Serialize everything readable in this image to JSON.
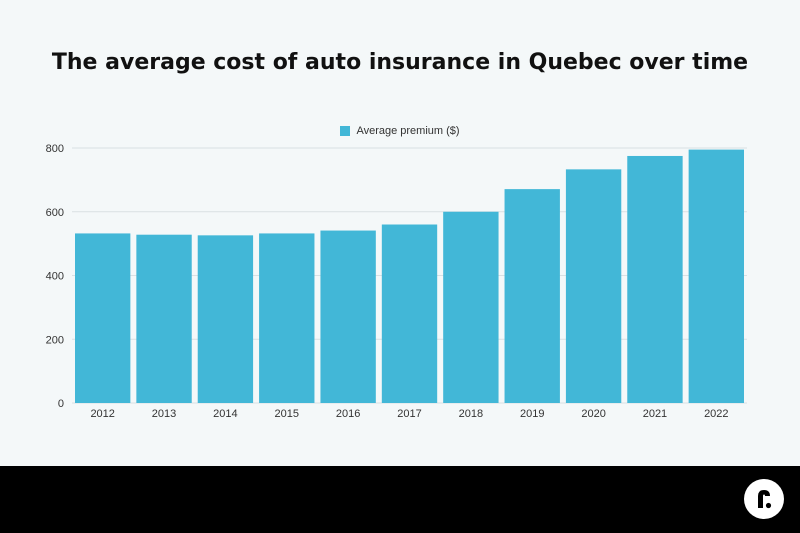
{
  "chart_data": {
    "type": "bar",
    "title": "The average cost of auto insurance in Quebec over time",
    "categories": [
      "2012",
      "2013",
      "2014",
      "2015",
      "2016",
      "2017",
      "2018",
      "2019",
      "2020",
      "2021",
      "2022"
    ],
    "series": [
      {
        "name": "Average premium ($)",
        "values": [
          532,
          528,
          526,
          532,
          541,
          560,
          600,
          671,
          733,
          775,
          795
        ]
      }
    ],
    "yticks": [
      "0",
      "200",
      "400",
      "600",
      "800"
    ],
    "ylim": [
      0,
      800
    ],
    "grid": true,
    "legend_position": "top-center",
    "bar_color": "#42b7d7",
    "gridline_color": "#d9e0e3"
  },
  "logo": {
    "icon": "brand-logo-icon"
  },
  "colors": {
    "background": "#f4f8f9",
    "footer": "#000000",
    "title": "#111111"
  }
}
